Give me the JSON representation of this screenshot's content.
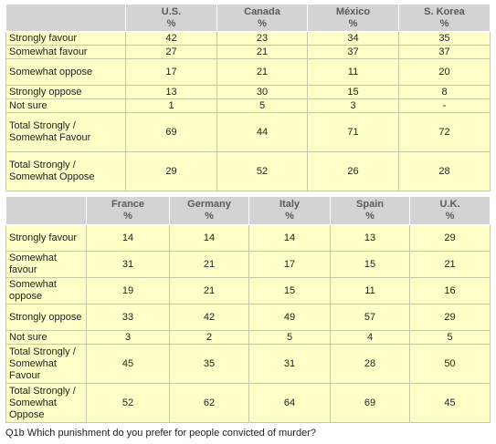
{
  "top_table": {
    "columns": [
      {
        "name": "U.S.",
        "unit": "%"
      },
      {
        "name": "Canada",
        "unit": "%"
      },
      {
        "name": "México",
        "unit": "%"
      },
      {
        "name": "S. Korea",
        "unit": "%"
      }
    ],
    "rows": [
      {
        "label": "Strongly favour",
        "values": [
          "42",
          "23",
          "34",
          "35"
        ]
      },
      {
        "label": "Somewhat favour",
        "values": [
          "27",
          "21",
          "37",
          "37"
        ]
      },
      {
        "label": "Somewhat oppose",
        "values": [
          "17",
          "21",
          "11",
          "20"
        ]
      },
      {
        "label": "Strongly oppose",
        "values": [
          "13",
          "30",
          "15",
          "8"
        ]
      },
      {
        "label": "Not sure",
        "values": [
          "1",
          "5",
          "3",
          "-"
        ]
      },
      {
        "label": "Total Strongly / Somewhat Favour",
        "values": [
          "69",
          "44",
          "71",
          "72"
        ]
      },
      {
        "label": "Total Strongly / Somewhat Oppose",
        "values": [
          "29",
          "52",
          "26",
          "28"
        ]
      }
    ]
  },
  "bottom_table": {
    "columns": [
      {
        "name": "France",
        "unit": "%"
      },
      {
        "name": "Germany",
        "unit": "%"
      },
      {
        "name": "Italy",
        "unit": "%"
      },
      {
        "name": "Spain",
        "unit": "%"
      },
      {
        "name": "U.K.",
        "unit": "%"
      }
    ],
    "rows": [
      {
        "label": "Strongly favour",
        "values": [
          "14",
          "14",
          "14",
          "13",
          "29"
        ]
      },
      {
        "label": "Somewhat favour",
        "values": [
          "31",
          "21",
          "17",
          "15",
          "21"
        ]
      },
      {
        "label": "Somewhat oppose",
        "values": [
          "19",
          "21",
          "15",
          "11",
          "16"
        ]
      },
      {
        "label": "Strongly oppose",
        "values": [
          "33",
          "42",
          "49",
          "57",
          "29"
        ]
      },
      {
        "label": "Not sure",
        "values": [
          "3",
          "2",
          "5",
          "4",
          "5"
        ]
      },
      {
        "label": "Total Strongly / Somewhat Favour",
        "values": [
          "45",
          "35",
          "31",
          "28",
          "50"
        ]
      },
      {
        "label": "Total Strongly / Somewhat Oppose",
        "values": [
          "52",
          "62",
          "64",
          "69",
          "45"
        ]
      }
    ]
  },
  "caption": "Q1b Which punishment do you prefer for people convicted of murder?"
}
